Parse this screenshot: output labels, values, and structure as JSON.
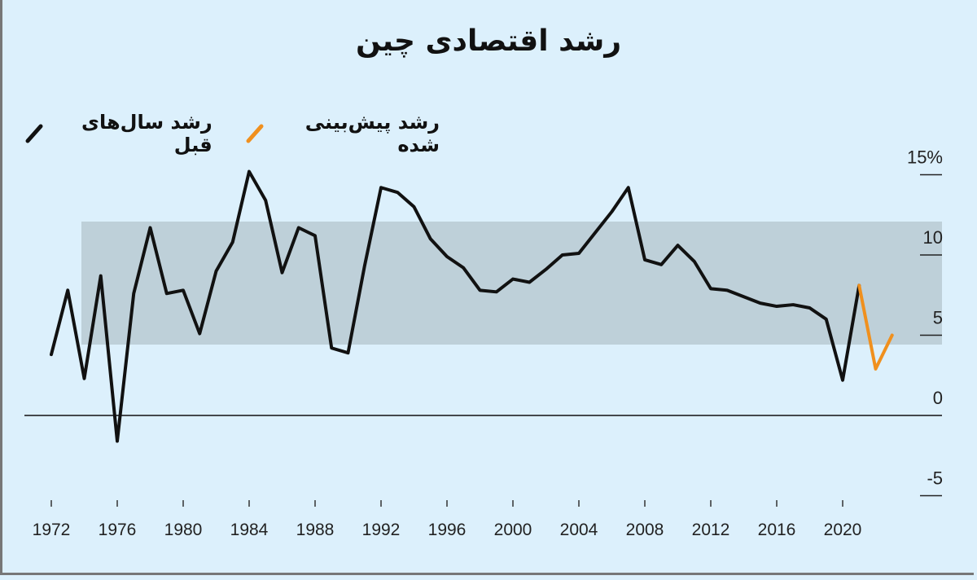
{
  "chart_data": {
    "type": "line",
    "title": "رشد اقتصادی چین",
    "xlabel": "",
    "ylabel": "",
    "y_unit": "%",
    "xlim": [
      1971,
      2024
    ],
    "ylim": [
      -5,
      15
    ],
    "yticks": [
      "-5",
      "0",
      "5",
      "10",
      "15%"
    ],
    "ytick_values": [
      -5,
      0,
      5,
      10,
      15
    ],
    "xticks": [
      1972,
      1976,
      1980,
      1984,
      1988,
      1992,
      1996,
      2000,
      2004,
      2008,
      2012,
      2016,
      2020
    ],
    "legend_placement": "top-left",
    "grid": false,
    "series": [
      {
        "name": "رشد سال‌های قبل",
        "color": "#111111",
        "x": [
          1972,
          1973,
          1974,
          1975,
          1976,
          1977,
          1978,
          1979,
          1980,
          1981,
          1982,
          1983,
          1984,
          1985,
          1986,
          1987,
          1988,
          1989,
          1990,
          1991,
          1992,
          1993,
          1994,
          1995,
          1996,
          1997,
          1998,
          1999,
          2000,
          2001,
          2002,
          2003,
          2004,
          2005,
          2006,
          2007,
          2008,
          2009,
          2010,
          2011,
          2012,
          2013,
          2014,
          2015,
          2016,
          2017,
          2018,
          2019,
          2020,
          2021
        ],
        "values": [
          3.8,
          7.8,
          2.3,
          8.7,
          -1.6,
          7.6,
          11.7,
          7.6,
          7.8,
          5.1,
          9.0,
          10.8,
          15.2,
          13.4,
          8.9,
          11.7,
          11.2,
          4.2,
          3.9,
          9.3,
          14.2,
          13.9,
          13.0,
          11.0,
          9.9,
          9.2,
          7.8,
          7.7,
          8.5,
          8.3,
          9.1,
          10.0,
          10.1,
          11.4,
          12.7,
          14.2,
          9.7,
          9.4,
          10.6,
          9.6,
          7.9,
          7.8,
          7.4,
          7.0,
          6.8,
          6.9,
          6.7,
          6.0,
          2.2,
          8.1
        ]
      },
      {
        "name": "رشد پیش‌بینی شده",
        "color": "#f0901e",
        "x": [
          2021,
          2022,
          2023
        ],
        "values": [
          8.1,
          2.9,
          5.0
        ]
      }
    ]
  }
}
